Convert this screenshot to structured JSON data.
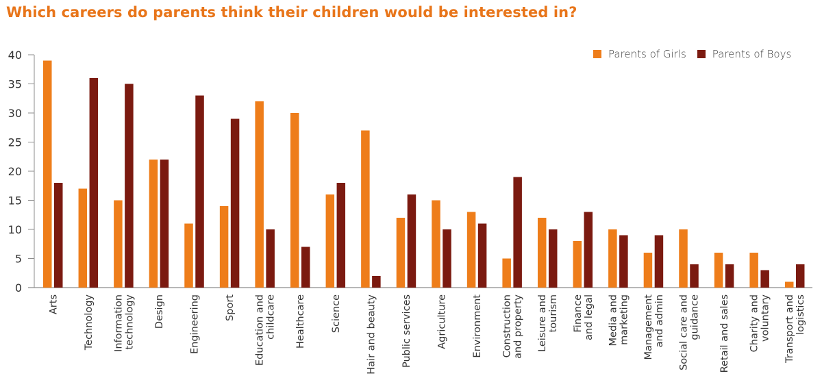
{
  "chart_data": {
    "type": "bar",
    "title": "Which careers do parents think their children would be interested in?",
    "xlabel": "",
    "ylabel": "",
    "ylim": [
      0,
      40
    ],
    "yticks": [
      0,
      5,
      10,
      15,
      20,
      25,
      30,
      35,
      40
    ],
    "grid": false,
    "legend_position": "top-right",
    "categories": [
      "Arts",
      "Technology",
      "Information technology",
      "Design",
      "Engineering",
      "Sport",
      "Education and childcare",
      "Healthcare",
      "Science",
      "Hair and beauty",
      "Public services",
      "Agriculture",
      "Environment",
      "Construction and property",
      "Leisure and tourism",
      "Finance and legal",
      "Media and marketing",
      "Management and admin",
      "Social care and guidance",
      "Retail and sales",
      "Charity and voluntary",
      "Transport and logistics"
    ],
    "category_label_lines": [
      [
        "Arts"
      ],
      [
        "Technology"
      ],
      [
        "Information",
        "technology"
      ],
      [
        "Design"
      ],
      [
        "Engineering"
      ],
      [
        "Sport"
      ],
      [
        "Education and",
        "childcare"
      ],
      [
        "Healthcare"
      ],
      [
        "Science"
      ],
      [
        "Hair and beauty"
      ],
      [
        "Public services"
      ],
      [
        "Agriculture"
      ],
      [
        "Environment"
      ],
      [
        "Construction",
        "and property"
      ],
      [
        "Leisure and",
        "tourism"
      ],
      [
        "Finance",
        "and legal"
      ],
      [
        "Media and",
        "marketing"
      ],
      [
        "Management",
        "and admin"
      ],
      [
        "Social care and",
        "guidance"
      ],
      [
        "Retail and sales"
      ],
      [
        "Charity and",
        "voluntary"
      ],
      [
        "Transport and",
        "logistics"
      ]
    ],
    "series": [
      {
        "name": "Parents of Girls",
        "color": "#ee7d1a",
        "values": [
          39,
          17,
          15,
          22,
          11,
          14,
          32,
          30,
          16,
          27,
          12,
          15,
          13,
          5,
          12,
          8,
          10,
          6,
          10,
          6,
          6,
          1
        ]
      },
      {
        "name": "Parents of Boys",
        "color": "#7b1a10",
        "values": [
          18,
          36,
          35,
          22,
          33,
          29,
          10,
          7,
          18,
          2,
          16,
          10,
          11,
          19,
          10,
          13,
          9,
          9,
          4,
          4,
          3,
          4
        ]
      }
    ]
  },
  "colors": {
    "title": "#e8751a",
    "axis": "#8c8c8c",
    "text": "#333333"
  }
}
